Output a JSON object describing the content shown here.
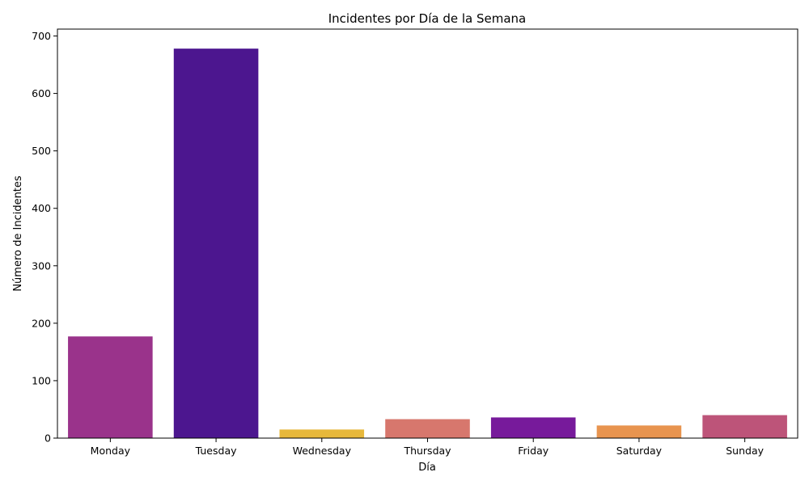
{
  "chart_data": {
    "type": "bar",
    "title": "Incidentes por Día de la Semana",
    "xlabel": "Día",
    "ylabel": "Número de Incidentes",
    "categories": [
      "Monday",
      "Tuesday",
      "Wednesday",
      "Thursday",
      "Friday",
      "Saturday",
      "Sunday"
    ],
    "values": [
      177,
      678,
      15,
      33,
      36,
      22,
      40
    ],
    "colors": [
      "#9a338b",
      "#4c168f",
      "#e7b83b",
      "#d7776d",
      "#771a9b",
      "#e8944f",
      "#bd5479"
    ],
    "ylim": [
      0,
      712
    ],
    "yticks": [
      0,
      100,
      200,
      300,
      400,
      500,
      600,
      700
    ],
    "grid": false,
    "legend": "none"
  }
}
